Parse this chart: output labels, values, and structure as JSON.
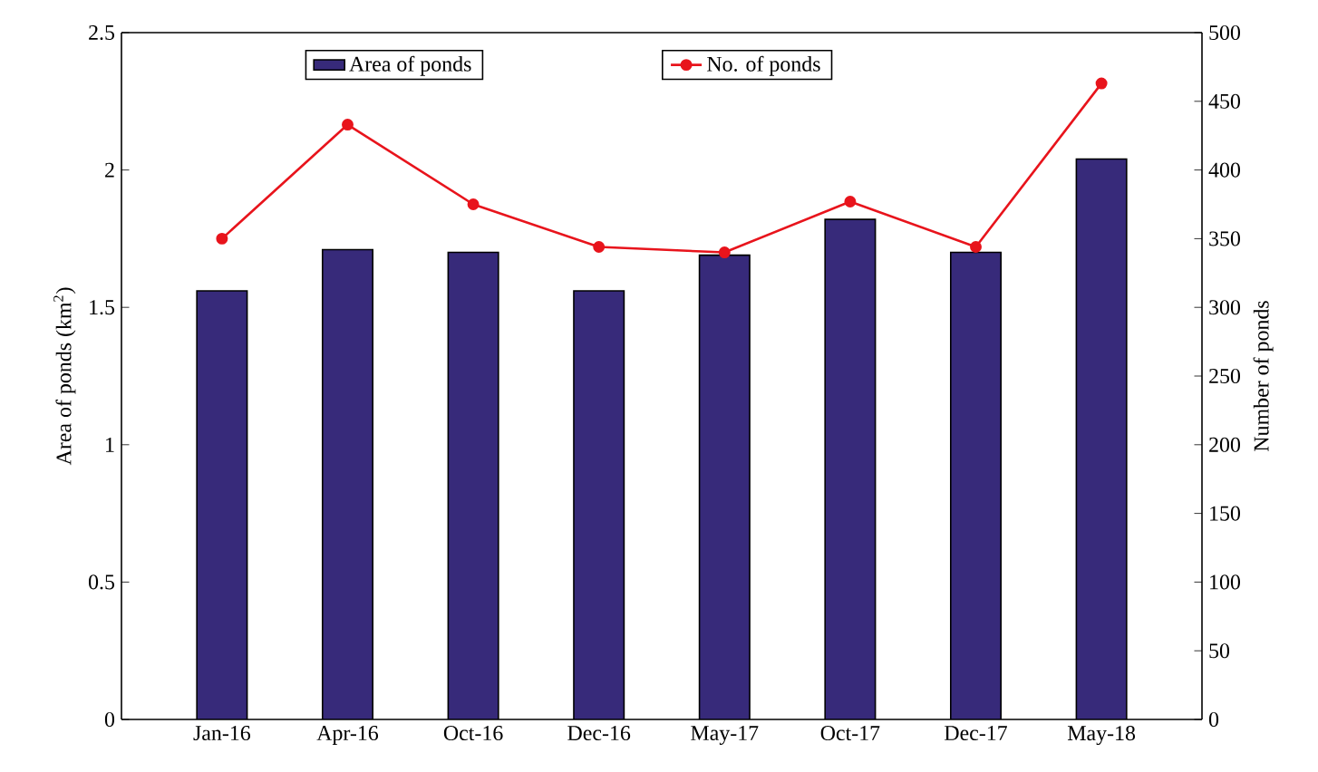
{
  "chart_data": {
    "type": "bar",
    "ylabel": "Area of ponds (km$^{2}$)",
    "y2label": "Number of ponds",
    "categories": [
      "Jan-16",
      "Apr-16",
      "Oct-16",
      "Dec-16",
      "May-17",
      "Oct-17",
      "Dec-17",
      "May-18"
    ],
    "series": [
      {
        "name": "Area of ponds",
        "color": "#372a7a",
        "values": [
          1.56,
          1.71,
          1.7,
          1.56,
          1.69,
          1.82,
          1.7,
          2.04
        ]
      },
      {
        "name": "No. of ponds",
        "type": "line",
        "axis": "y2",
        "color": "#e8141c",
        "marker": "circle",
        "values": [
          350,
          433,
          375,
          344,
          340,
          377,
          344,
          463
        ]
      }
    ],
    "ylim": [
      0,
      2.5
    ],
    "yticks": [
      0,
      0.5,
      1,
      1.5,
      2,
      2.5
    ],
    "y2lim": [
      0,
      500
    ],
    "y2ticks": [
      0,
      50,
      100,
      150,
      200,
      250,
      300,
      350,
      400,
      450,
      500
    ],
    "legend": "top",
    "grid": false
  }
}
